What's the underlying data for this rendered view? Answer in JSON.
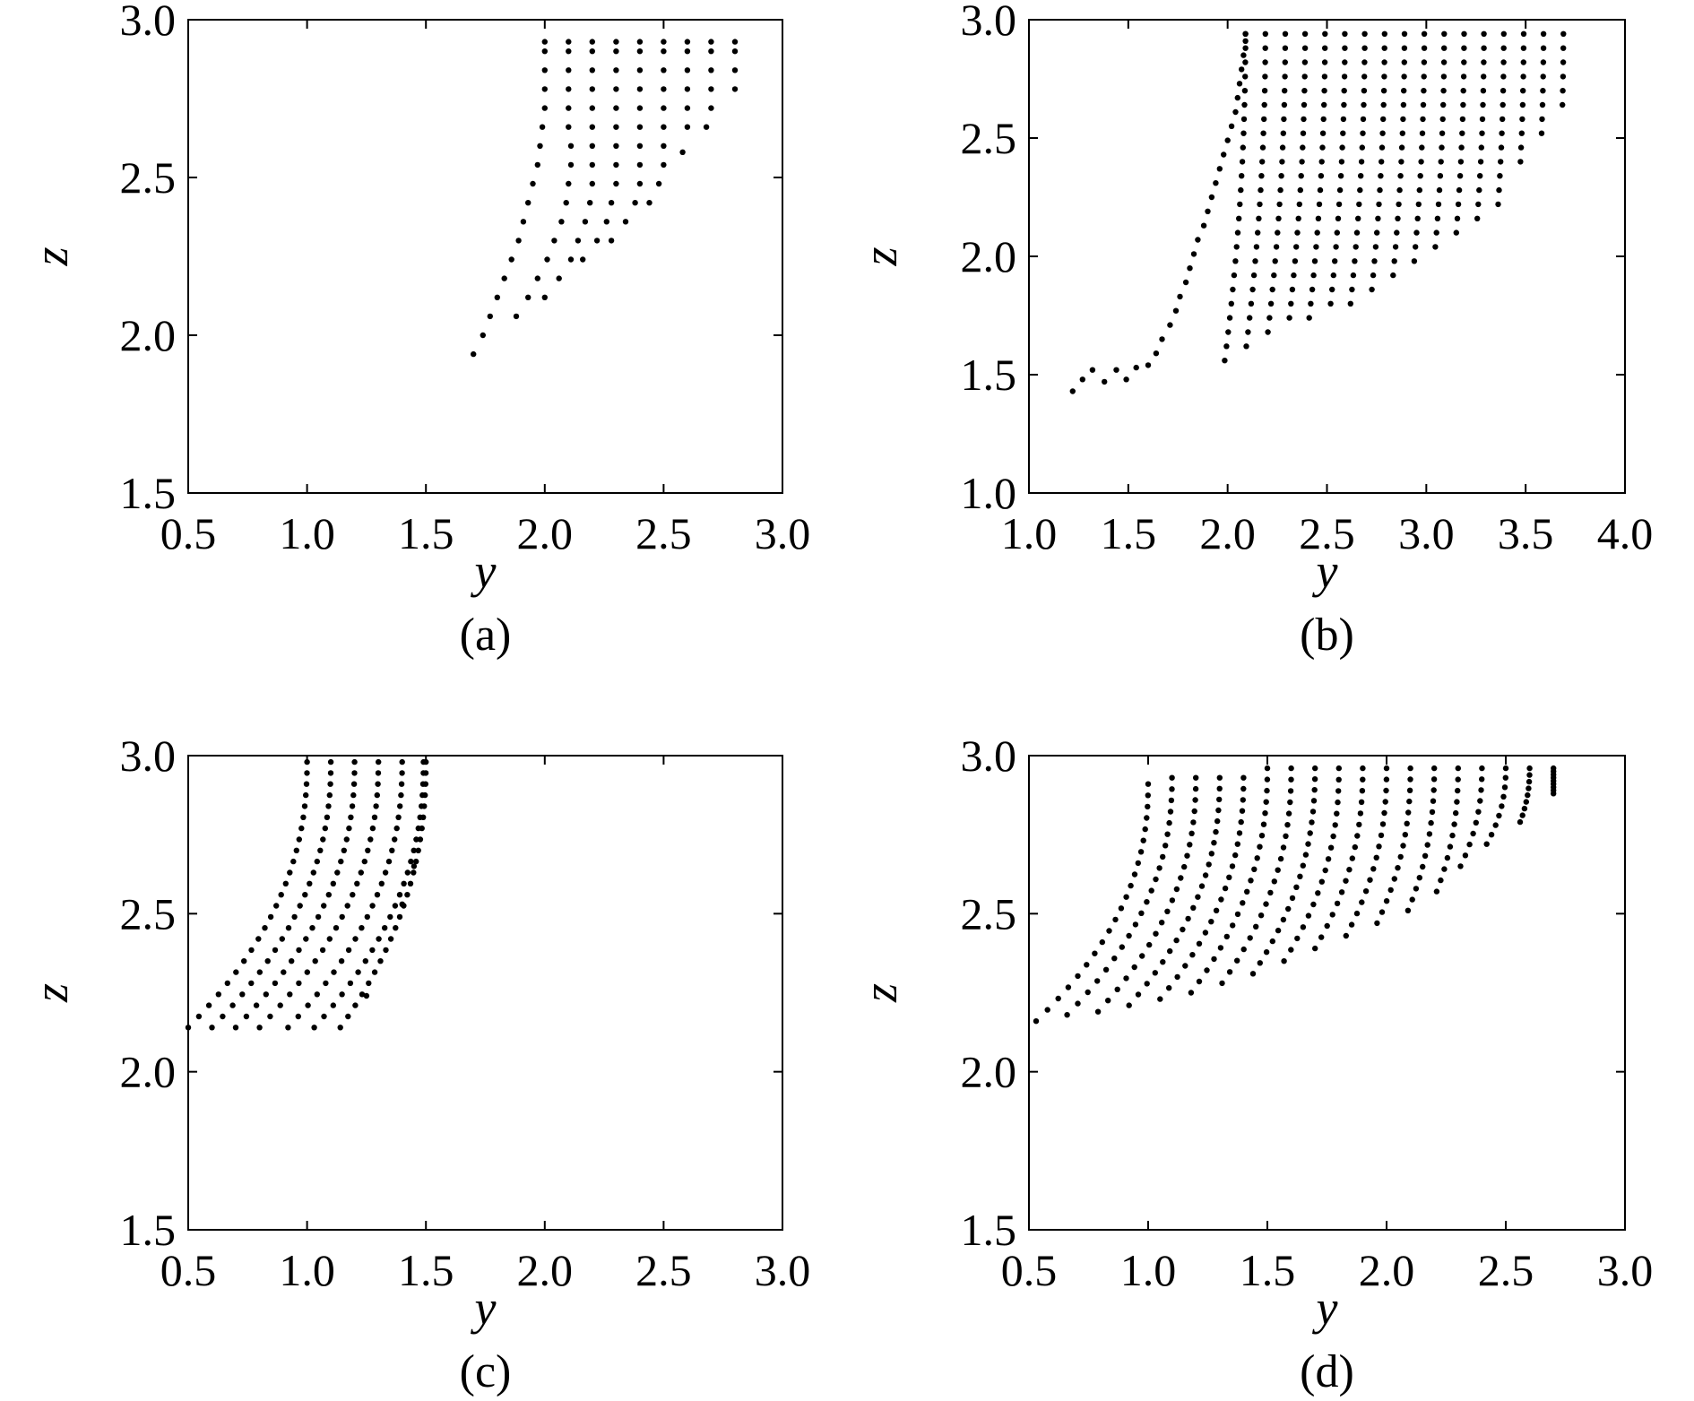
{
  "chart_data": [
    {
      "type": "scatter",
      "panel_label": "(a)",
      "xlabel": "y",
      "ylabel": "z",
      "xlim": [
        0.5,
        3.0
      ],
      "ylim": [
        1.5,
        3.0
      ],
      "xticks": [
        "0.5",
        "1.0",
        "1.5",
        "2.0",
        "2.5",
        "3.0"
      ],
      "yticks": [
        "1.5",
        "2.0",
        "2.5",
        "3.0"
      ],
      "grid": false,
      "legend": "none",
      "pattern": "triangular-lattice",
      "points": [
        [
          1.7,
          1.94
        ],
        [
          1.74,
          2.0
        ],
        [
          1.77,
          2.06
        ],
        [
          1.8,
          2.12
        ],
        [
          1.83,
          2.18
        ],
        [
          1.86,
          2.24
        ],
        [
          1.89,
          2.3
        ],
        [
          1.91,
          2.36
        ],
        [
          1.93,
          2.42
        ],
        [
          1.95,
          2.48
        ],
        [
          1.97,
          2.54
        ],
        [
          1.98,
          2.6
        ],
        [
          1.99,
          2.66
        ],
        [
          2.0,
          2.72
        ],
        [
          2.0,
          2.78
        ],
        [
          2.0,
          2.84
        ],
        [
          2.0,
          2.9
        ],
        [
          2.0,
          2.93
        ],
        [
          1.88,
          2.06
        ],
        [
          1.93,
          2.12
        ],
        [
          1.97,
          2.18
        ],
        [
          2.01,
          2.24
        ],
        [
          2.04,
          2.3
        ],
        [
          2.07,
          2.36
        ],
        [
          2.09,
          2.42
        ],
        [
          2.1,
          2.48
        ],
        [
          2.11,
          2.54
        ],
        [
          2.11,
          2.6
        ],
        [
          2.1,
          2.66
        ],
        [
          2.1,
          2.72
        ],
        [
          2.1,
          2.78
        ],
        [
          2.1,
          2.84
        ],
        [
          2.1,
          2.9
        ],
        [
          2.1,
          2.93
        ],
        [
          2.0,
          2.12
        ],
        [
          2.06,
          2.18
        ],
        [
          2.11,
          2.24
        ],
        [
          2.14,
          2.3
        ],
        [
          2.17,
          2.36
        ],
        [
          2.19,
          2.42
        ],
        [
          2.2,
          2.48
        ],
        [
          2.2,
          2.54
        ],
        [
          2.2,
          2.6
        ],
        [
          2.2,
          2.66
        ],
        [
          2.2,
          2.72
        ],
        [
          2.2,
          2.78
        ],
        [
          2.2,
          2.84
        ],
        [
          2.2,
          2.9
        ],
        [
          2.2,
          2.93
        ],
        [
          2.16,
          2.24
        ],
        [
          2.22,
          2.3
        ],
        [
          2.26,
          2.36
        ],
        [
          2.28,
          2.42
        ],
        [
          2.3,
          2.48
        ],
        [
          2.3,
          2.54
        ],
        [
          2.3,
          2.6
        ],
        [
          2.3,
          2.66
        ],
        [
          2.3,
          2.72
        ],
        [
          2.3,
          2.78
        ],
        [
          2.3,
          2.84
        ],
        [
          2.3,
          2.9
        ],
        [
          2.3,
          2.93
        ],
        [
          2.28,
          2.3
        ],
        [
          2.34,
          2.36
        ],
        [
          2.38,
          2.42
        ],
        [
          2.4,
          2.48
        ],
        [
          2.4,
          2.54
        ],
        [
          2.4,
          2.6
        ],
        [
          2.4,
          2.66
        ],
        [
          2.4,
          2.72
        ],
        [
          2.4,
          2.78
        ],
        [
          2.4,
          2.84
        ],
        [
          2.4,
          2.9
        ],
        [
          2.4,
          2.93
        ],
        [
          2.44,
          2.42
        ],
        [
          2.48,
          2.48
        ],
        [
          2.5,
          2.54
        ],
        [
          2.5,
          2.6
        ],
        [
          2.5,
          2.66
        ],
        [
          2.5,
          2.72
        ],
        [
          2.5,
          2.78
        ],
        [
          2.5,
          2.84
        ],
        [
          2.5,
          2.9
        ],
        [
          2.5,
          2.93
        ],
        [
          2.58,
          2.58
        ],
        [
          2.6,
          2.66
        ],
        [
          2.6,
          2.72
        ],
        [
          2.6,
          2.78
        ],
        [
          2.6,
          2.84
        ],
        [
          2.6,
          2.9
        ],
        [
          2.6,
          2.93
        ],
        [
          2.68,
          2.66
        ],
        [
          2.7,
          2.72
        ],
        [
          2.7,
          2.78
        ],
        [
          2.7,
          2.84
        ],
        [
          2.7,
          2.9
        ],
        [
          2.7,
          2.93
        ],
        [
          2.8,
          2.78
        ],
        [
          2.8,
          2.84
        ],
        [
          2.8,
          2.9
        ],
        [
          2.8,
          2.93
        ]
      ]
    },
    {
      "type": "scatter",
      "panel_label": "(b)",
      "xlabel": "y",
      "ylabel": "z",
      "xlim": [
        1.0,
        4.0
      ],
      "ylim": [
        1.0,
        3.0
      ],
      "xticks": [
        "1.0",
        "1.5",
        "2.0",
        "2.5",
        "3.0",
        "3.5",
        "4.0"
      ],
      "yticks": [
        "1.0",
        "1.5",
        "2.0",
        "2.5",
        "3.0"
      ],
      "grid": false,
      "legend": "none",
      "pattern": "triangular-lattice",
      "points": [
        [
          1.22,
          1.43
        ],
        [
          1.27,
          1.48
        ],
        [
          1.32,
          1.52
        ],
        [
          1.38,
          1.47
        ],
        [
          1.44,
          1.52
        ],
        [
          1.49,
          1.48
        ],
        [
          1.54,
          1.53
        ],
        [
          1.6,
          1.54
        ],
        [
          1.64,
          1.59
        ],
        [
          1.67,
          1.65
        ],
        [
          1.71,
          1.71
        ],
        [
          1.74,
          1.77
        ],
        [
          1.76,
          1.83
        ],
        [
          1.79,
          1.89
        ],
        [
          1.81,
          1.95
        ],
        [
          1.83,
          2.01
        ],
        [
          1.85,
          2.07
        ],
        [
          1.88,
          2.13
        ],
        [
          1.9,
          2.19
        ],
        [
          1.92,
          2.25
        ],
        [
          1.94,
          2.31
        ],
        [
          1.96,
          2.37
        ],
        [
          1.98,
          2.43
        ],
        [
          2.0,
          2.49
        ],
        [
          2.02,
          2.55
        ],
        [
          2.04,
          2.61
        ],
        [
          2.05,
          2.67
        ],
        [
          2.06,
          2.73
        ],
        [
          2.07,
          2.79
        ],
        [
          2.08,
          2.85
        ],
        [
          2.09,
          2.91
        ],
        [
          2.09,
          2.94
        ]
      ],
      "columns": {
        "x_start": [
          2.09,
          2.19,
          2.29,
          2.39,
          2.49,
          2.59,
          2.69,
          2.79,
          2.89,
          2.99,
          3.09,
          3.19,
          3.29,
          3.39,
          3.49,
          3.59,
          3.69
        ],
        "z_bottom": [
          1.55,
          1.61,
          1.66,
          1.7,
          1.73,
          1.77,
          1.8,
          1.85,
          1.89,
          1.94,
          2.0,
          2.06,
          2.12,
          2.2,
          2.37,
          2.5,
          2.62
        ]
      }
    },
    {
      "type": "scatter",
      "panel_label": "(c)",
      "xlabel": "y",
      "ylabel": "z",
      "xlim": [
        0.5,
        3.0
      ],
      "ylim": [
        1.5,
        3.0
      ],
      "xticks": [
        "0.5",
        "1.0",
        "1.5",
        "2.0",
        "2.5",
        "3.0"
      ],
      "yticks": [
        "1.5",
        "2.0",
        "2.5",
        "3.0"
      ],
      "grid": false,
      "legend": "none",
      "pattern": "curved-lines",
      "curves": [
        {
          "top_x": 1.0,
          "bottom": [
            0.5,
            2.14
          ]
        },
        {
          "top_x": 1.1,
          "bottom": [
            0.6,
            2.14
          ]
        },
        {
          "top_x": 1.2,
          "bottom": [
            0.7,
            2.14
          ]
        },
        {
          "top_x": 1.3,
          "bottom": [
            0.8,
            2.14
          ]
        },
        {
          "top_x": 1.4,
          "bottom": [
            0.92,
            2.14
          ]
        },
        {
          "top_x": 1.49,
          "bottom": [
            1.03,
            2.14
          ]
        },
        {
          "top_x": 1.5,
          "bottom": [
            1.14,
            2.14
          ]
        }
      ],
      "extra_points": [
        [
          1.25,
          2.24
        ],
        [
          1.4,
          2.53
        ],
        [
          1.45,
          2.65
        ]
      ]
    },
    {
      "type": "scatter",
      "panel_label": "(d)",
      "xlabel": "y",
      "ylabel": "z",
      "xlim": [
        0.5,
        3.0
      ],
      "ylim": [
        1.5,
        3.0
      ],
      "xticks": [
        "0.5",
        "1.0",
        "1.5",
        "2.0",
        "2.5",
        "3.0"
      ],
      "yticks": [
        "1.5",
        "2.0",
        "2.5",
        "3.0"
      ],
      "grid": false,
      "legend": "none",
      "pattern": "curved-lines",
      "curves": [
        {
          "top_x": 1.0,
          "top_z": 2.91,
          "bottom": [
            0.53,
            2.16
          ]
        },
        {
          "top_x": 1.1,
          "top_z": 2.93,
          "bottom": [
            0.66,
            2.18
          ]
        },
        {
          "top_x": 1.2,
          "top_z": 2.93,
          "bottom": [
            0.79,
            2.19
          ]
        },
        {
          "top_x": 1.3,
          "top_z": 2.93,
          "bottom": [
            0.92,
            2.21
          ]
        },
        {
          "top_x": 1.4,
          "top_z": 2.93,
          "bottom": [
            1.05,
            2.23
          ]
        },
        {
          "top_x": 1.5,
          "top_z": 2.96,
          "bottom": [
            1.18,
            2.25
          ]
        },
        {
          "top_x": 1.6,
          "top_z": 2.96,
          "bottom": [
            1.31,
            2.28
          ]
        },
        {
          "top_x": 1.7,
          "top_z": 2.96,
          "bottom": [
            1.44,
            2.31
          ]
        },
        {
          "top_x": 1.8,
          "top_z": 2.96,
          "bottom": [
            1.57,
            2.35
          ]
        },
        {
          "top_x": 1.9,
          "top_z": 2.96,
          "bottom": [
            1.7,
            2.39
          ]
        },
        {
          "top_x": 2.0,
          "top_z": 2.96,
          "bottom": [
            1.83,
            2.43
          ]
        },
        {
          "top_x": 2.1,
          "top_z": 2.96,
          "bottom": [
            1.96,
            2.47
          ]
        },
        {
          "top_x": 2.2,
          "top_z": 2.96,
          "bottom": [
            2.09,
            2.51
          ]
        },
        {
          "top_x": 2.3,
          "top_z": 2.96,
          "bottom": [
            2.21,
            2.57
          ]
        },
        {
          "top_x": 2.4,
          "top_z": 2.96,
          "bottom": [
            2.31,
            2.65
          ]
        },
        {
          "top_x": 2.5,
          "top_z": 2.96,
          "bottom": [
            2.42,
            2.72
          ]
        },
        {
          "top_x": 2.6,
          "top_z": 2.96,
          "bottom": [
            2.56,
            2.79
          ]
        },
        {
          "top_x": 2.7,
          "top_z": 2.96,
          "bottom": [
            2.7,
            2.88
          ]
        }
      ]
    }
  ]
}
